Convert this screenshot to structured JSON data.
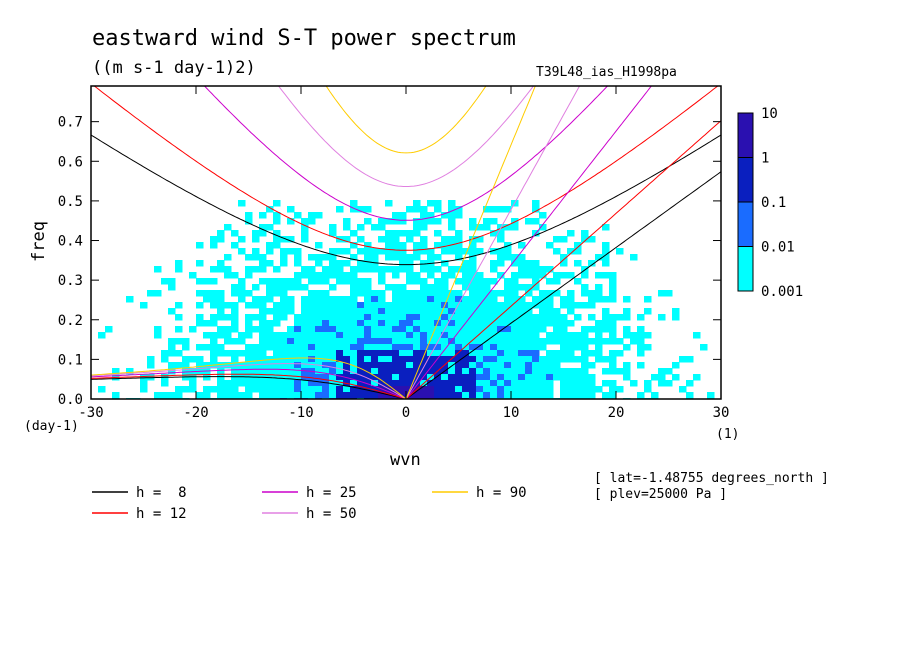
{
  "chart_data": {
    "type": "heatmap",
    "title": "eastward wind S-T power spectrum",
    "units": "((m s-1 day-1)2)",
    "run_label": "T39L48_ias_H1998pa",
    "xlabel": "wvn",
    "ylabel": "freq",
    "x_unit": "(1)",
    "y_unit": "(day-1)",
    "xlim": [
      -30,
      30
    ],
    "ylim": [
      0,
      0.79
    ],
    "x_ticks": [
      -30,
      -20,
      -10,
      0,
      10,
      20,
      30
    ],
    "y_ticks": [
      0.0,
      0.1,
      0.2,
      0.3,
      0.4,
      0.5,
      0.6,
      0.7
    ],
    "x_tick_labels": [
      "-30",
      "-20",
      "-10",
      "0",
      "10",
      "20",
      "30"
    ],
    "y_tick_labels": [
      "0.0",
      "0.1",
      "0.2",
      "0.3",
      "0.4",
      "0.5",
      "0.6",
      "0.7"
    ],
    "colorbar": {
      "levels": [
        "0.001",
        "0.01",
        "0.1",
        "1",
        "10"
      ],
      "colors": [
        "#00ffff",
        "#1a6cff",
        "#0a1fbf",
        "#2a10b0"
      ]
    },
    "dispersion_curves": [
      {
        "name": "h =  8",
        "color": "#000000"
      },
      {
        "name": "h = 12",
        "color": "#ff0000"
      },
      {
        "name": "h = 25",
        "color": "#cc00cc"
      },
      {
        "name": "h = 50",
        "color": "#e080e0"
      },
      {
        "name": "h = 90",
        "color": "#ffcc00"
      }
    ],
    "annotations": [
      "[ lat=-1.48755 degrees_north ]",
      "[ plev=25000 Pa ]"
    ]
  }
}
